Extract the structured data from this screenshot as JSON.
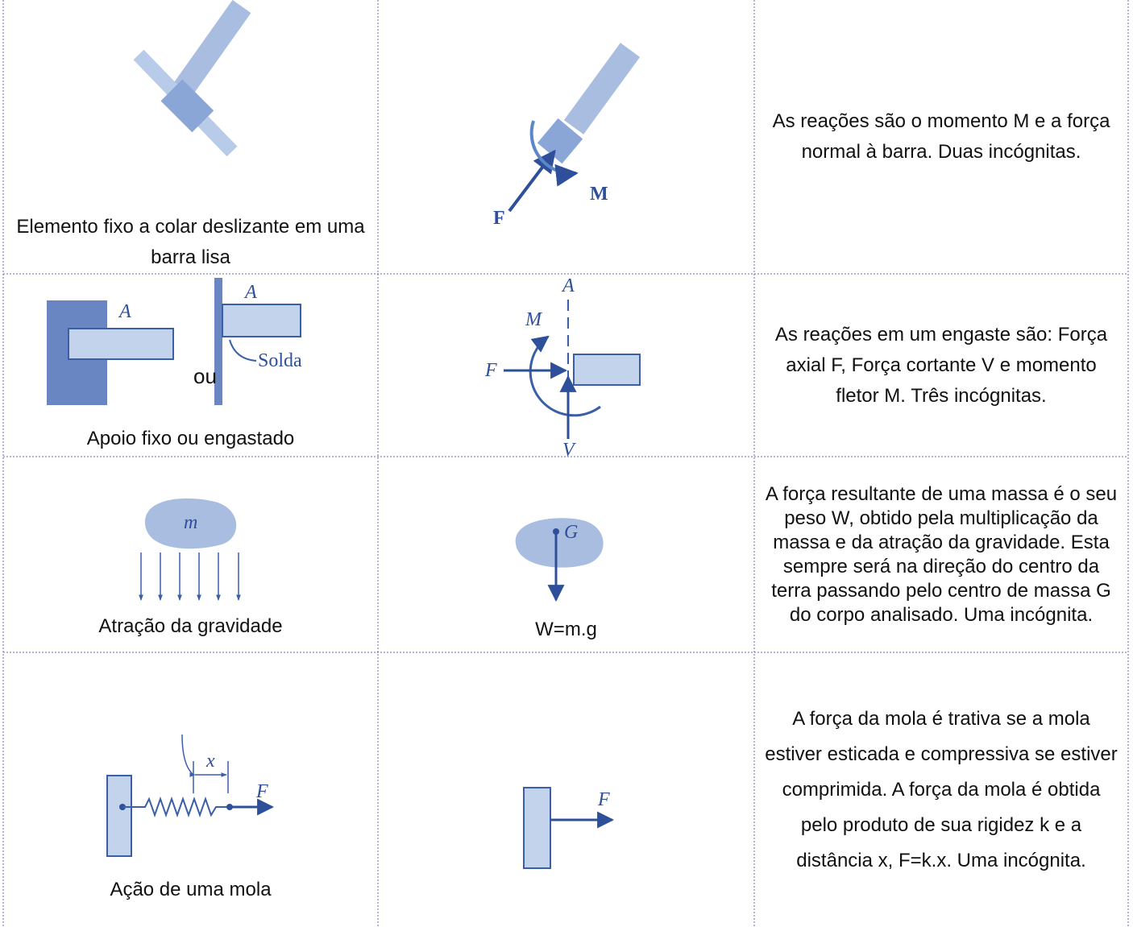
{
  "table": {
    "rows": [
      {
        "support": {
          "caption": "Elemento fixo a colar deslizante em uma barra lisa"
        },
        "reaction": {
          "labels": [
            "F",
            "M"
          ]
        },
        "description": "As reações são o momento M e a força normal à barra. Duas incógnitas."
      },
      {
        "support": {
          "labels": [
            "A",
            "A",
            "Solda"
          ],
          "joiner": "ou",
          "caption": "Apoio fixo ou engastado"
        },
        "reaction": {
          "labels": [
            "A",
            "M",
            "F",
            "V"
          ]
        },
        "description": "As reações em um engaste são: Força axial F, Força cortante V e momento fletor M. Três incógnitas."
      },
      {
        "support": {
          "labels": [
            "m"
          ],
          "caption": "Atração da gravidade"
        },
        "reaction": {
          "labels": [
            "G"
          ],
          "caption": "W=m.g"
        },
        "description": "A força resultante de uma massa é o seu peso W, obtido pela multiplicação da massa e da atração da gravidade. Esta sempre será na direção do centro da terra passando pelo centro de massa G do corpo analisado. Uma incógnita."
      },
      {
        "support": {
          "labels": [
            "x",
            "F"
          ],
          "caption": "Ação de uma mola"
        },
        "reaction": {
          "labels": [
            "F"
          ]
        },
        "description": "A força da mola é trativa se a mola estiver esticada e compressiva se estiver comprimida. A força da mola é obtida pelo produto de sua rigidez k e a distância x, F=k.x. Uma incógnita."
      }
    ]
  }
}
